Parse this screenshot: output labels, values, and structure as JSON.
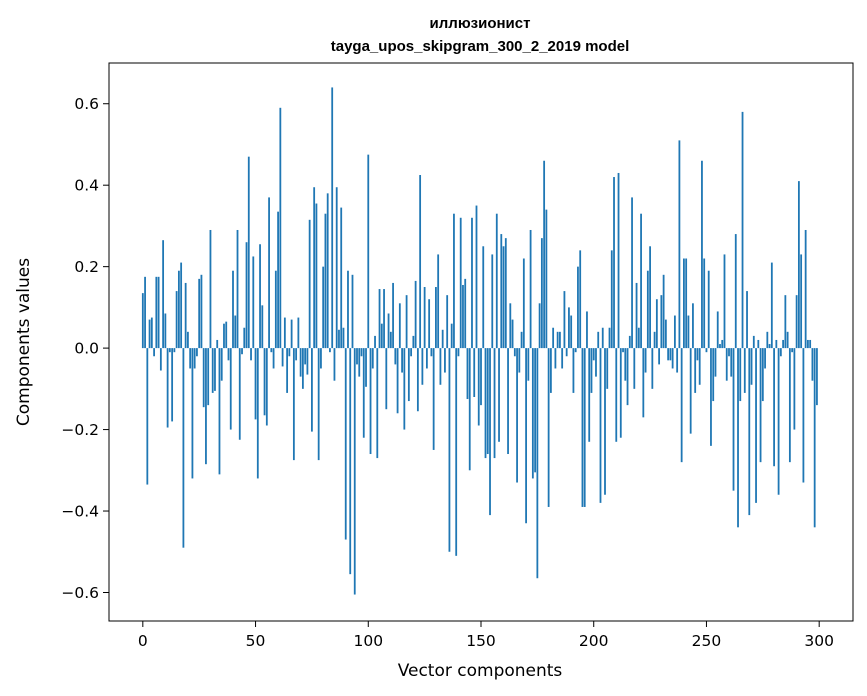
{
  "chart_data": {
    "type": "bar",
    "title": "иллюзионист",
    "subtitle": "tayga_upos_skipgram_300_2_2019 model",
    "xlabel": "Vector components",
    "ylabel": "Components values",
    "xlim": [
      -15,
      315
    ],
    "ylim": [
      -0.67,
      0.7
    ],
    "xticks": [
      0,
      50,
      100,
      150,
      200,
      250,
      300
    ],
    "yticks": [
      -0.6,
      -0.4,
      -0.2,
      0.0,
      0.2,
      0.4,
      0.6
    ],
    "ytick_labels": [
      "−0.6",
      "−0.4",
      "−0.2",
      "0.0",
      "0.2",
      "0.4",
      "0.6"
    ],
    "grid": false,
    "bar_color": "#1f77b4",
    "values": [
      0.135,
      0.175,
      -0.335,
      0.07,
      0.075,
      -0.02,
      0.175,
      0.175,
      -0.055,
      0.265,
      0.085,
      -0.195,
      -0.01,
      -0.18,
      -0.01,
      0.14,
      0.19,
      0.21,
      -0.49,
      0.16,
      0.04,
      -0.05,
      -0.32,
      -0.05,
      -0.02,
      0.17,
      0.18,
      -0.145,
      -0.285,
      -0.14,
      0.29,
      -0.11,
      -0.105,
      0.02,
      -0.31,
      -0.08,
      0.06,
      0.065,
      -0.03,
      -0.2,
      0.19,
      0.08,
      0.29,
      -0.225,
      -0.015,
      0.05,
      0.26,
      0.47,
      -0.03,
      0.225,
      -0.175,
      -0.32,
      0.255,
      0.105,
      -0.165,
      -0.19,
      0.37,
      -0.01,
      -0.05,
      0.19,
      0.335,
      0.59,
      -0.045,
      0.075,
      -0.11,
      -0.02,
      0.07,
      -0.275,
      -0.03,
      0.075,
      -0.07,
      -0.1,
      -0.04,
      -0.065,
      0.315,
      -0.205,
      0.395,
      0.355,
      -0.275,
      -0.05,
      0.2,
      0.33,
      0.38,
      -0.01,
      0.64,
      -0.08,
      0.395,
      0.045,
      0.345,
      0.05,
      -0.47,
      0.19,
      -0.555,
      0.18,
      -0.605,
      -0.04,
      -0.07,
      -0.02,
      -0.22,
      -0.095,
      0.475,
      -0.26,
      -0.05,
      0.03,
      -0.27,
      0.145,
      0.06,
      0.145,
      -0.15,
      0.085,
      0.04,
      0.16,
      -0.04,
      -0.16,
      0.11,
      -0.06,
      -0.2,
      0.13,
      -0.13,
      -0.02,
      0.03,
      0.165,
      -0.155,
      0.425,
      -0.09,
      0.15,
      -0.05,
      0.12,
      -0.02,
      -0.25,
      0.15,
      0.23,
      -0.09,
      0.045,
      -0.06,
      0.13,
      -0.5,
      0.06,
      0.33,
      -0.51,
      -0.02,
      0.32,
      0.155,
      0.17,
      -0.125,
      -0.3,
      0.32,
      -0.12,
      0.35,
      -0.19,
      -0.14,
      0.25,
      -0.27,
      -0.26,
      -0.41,
      0.23,
      -0.27,
      0.33,
      -0.23,
      0.28,
      0.25,
      0.27,
      -0.26,
      0.11,
      0.07,
      -0.02,
      -0.33,
      -0.06,
      0.04,
      0.22,
      -0.43,
      -0.08,
      0.29,
      -0.32,
      -0.305,
      -0.565,
      0.11,
      0.27,
      0.46,
      0.34,
      -0.39,
      -0.11,
      0.05,
      -0.05,
      0.04,
      0.04,
      -0.05,
      0.14,
      -0.02,
      0.1,
      0.08,
      -0.11,
      -0.01,
      0.2,
      0.24,
      -0.39,
      -0.39,
      0.09,
      -0.23,
      -0.11,
      -0.03,
      -0.07,
      0.04,
      -0.38,
      0.05,
      -0.36,
      -0.1,
      0.05,
      0.24,
      0.42,
      -0.23,
      0.43,
      -0.22,
      -0.01,
      -0.08,
      -0.14,
      0.03,
      0.37,
      -0.1,
      0.16,
      0.05,
      0.33,
      -0.17,
      -0.06,
      0.19,
      0.25,
      -0.1,
      0.04,
      0.12,
      -0.04,
      0.13,
      0.18,
      0.07,
      -0.03,
      -0.03,
      -0.05,
      0.08,
      -0.06,
      0.51,
      -0.28,
      0.22,
      0.22,
      0.08,
      -0.21,
      0.11,
      -0.11,
      -0.03,
      -0.09,
      0.46,
      0.22,
      -0.01,
      0.19,
      -0.24,
      -0.13,
      -0.07,
      0.09,
      0.01,
      0.02,
      0.23,
      -0.08,
      -0.02,
      -0.07,
      -0.35,
      0.28,
      -0.44,
      -0.13,
      0.58,
      -0.11,
      0.14,
      -0.41,
      -0.09,
      0.03,
      -0.38,
      0.02,
      -0.28,
      -0.13,
      -0.05,
      0.04,
      0.01,
      0.21,
      -0.29,
      0.02,
      -0.36,
      -0.02,
      0.02,
      0.13,
      0.04,
      -0.28,
      -0.01,
      -0.2,
      0.13,
      0.41,
      0.23,
      -0.33,
      0.29,
      0.02,
      0.02,
      -0.08,
      -0.44,
      -0.14
    ]
  }
}
